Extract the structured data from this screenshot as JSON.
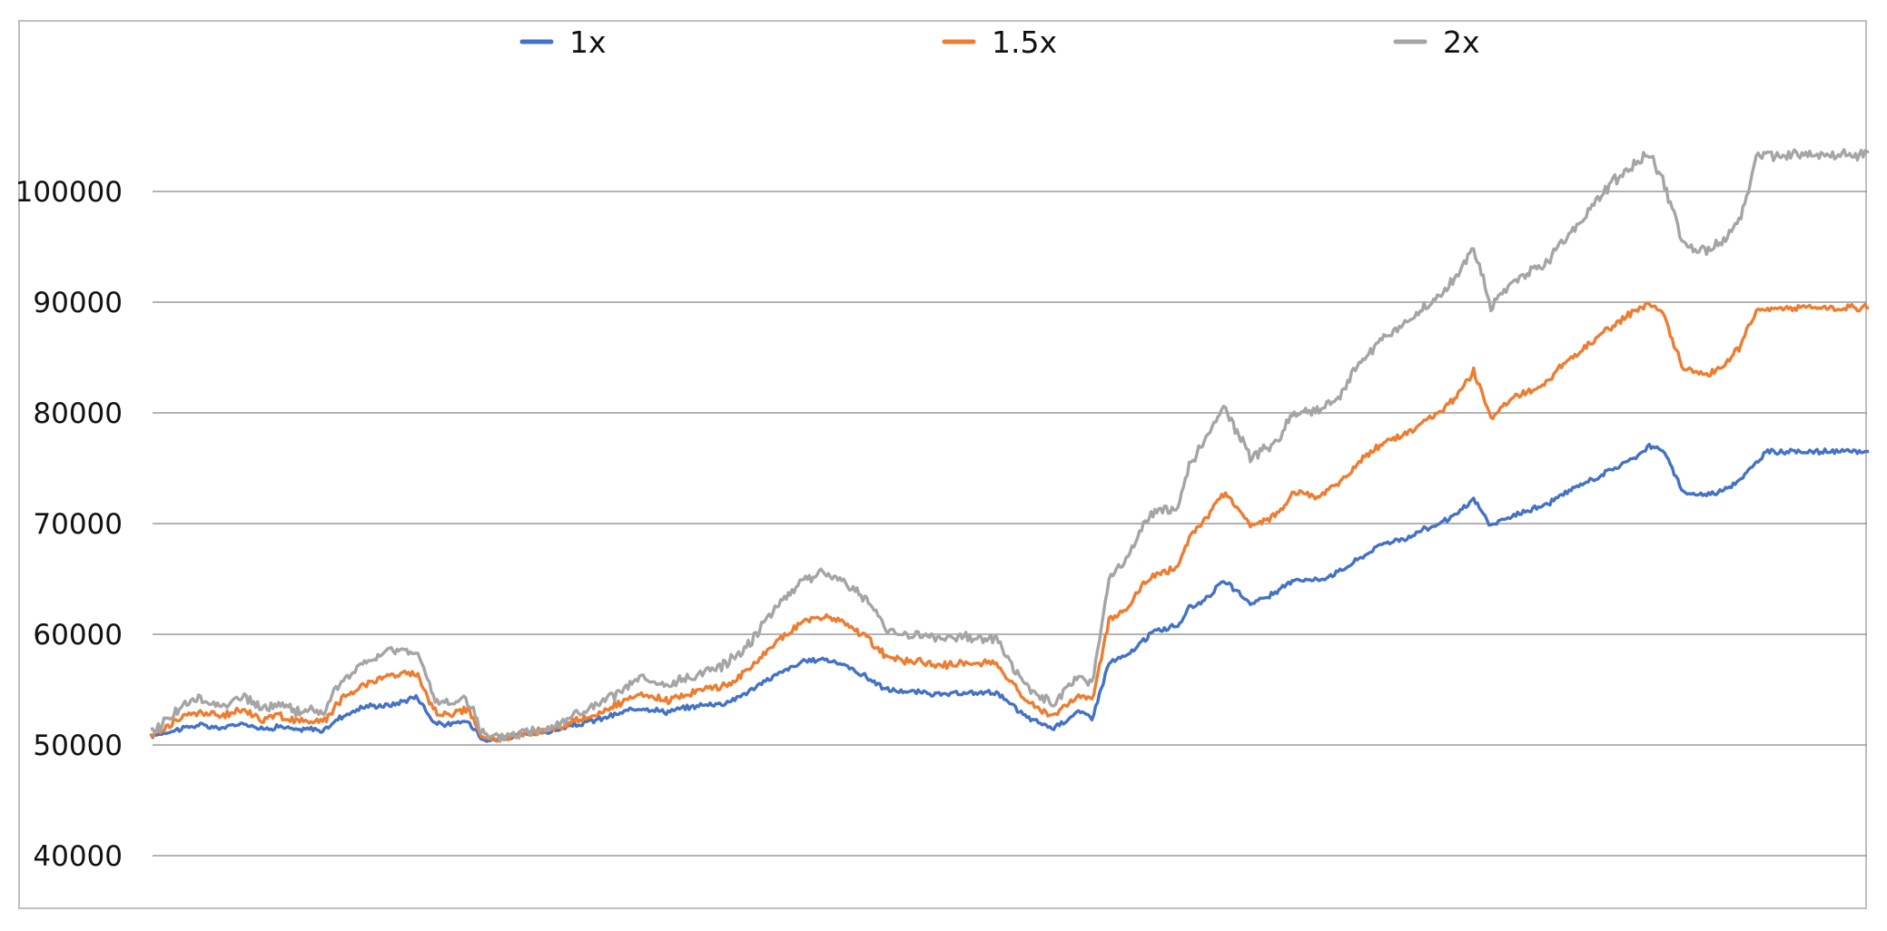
{
  "chart_data": {
    "type": "line",
    "title": "",
    "xlabel": "",
    "ylabel": "",
    "ylim": [
      35000,
      115000
    ],
    "yticks": [
      40000,
      50000,
      60000,
      70000,
      80000,
      90000,
      100000
    ],
    "ytick_labels": [
      "40000",
      "50000",
      "60000",
      "70000",
      "80000",
      "90000",
      "100000"
    ],
    "grid": "horizontal",
    "legend_position": "top",
    "x": [
      0,
      18,
      28,
      40,
      55,
      65,
      75,
      85,
      95,
      100,
      110,
      125,
      140,
      155,
      165,
      175,
      183,
      188,
      192,
      197,
      208,
      220,
      235,
      248,
      258,
      270,
      285,
      300,
      310,
      320,
      335,
      350,
      360,
      370,
      380,
      392,
      404,
      416,
      428,
      440,
      452,
      460,
      468,
      480,
      492,
      500,
      510,
      525,
      540,
      548,
      558,
      568,
      575,
      583,
      590,
      598,
      604,
      612,
      625,
      640,
      655,
      665,
      680,
      692,
      705,
      718,
      730,
      740,
      750,
      760,
      770,
      780,
      790,
      800,
      812,
      822,
      832,
      842,
      852,
      862,
      872,
      880,
      892,
      905,
      915,
      925,
      935,
      940,
      948,
      960,
      970,
      975,
      980,
      990,
      1000,
      1000
    ],
    "series": [
      {
        "name": "1x",
        "color": "#4472c4",
        "values": [
          50800,
          51500,
          51800,
          51500,
          52000,
          51400,
          51700,
          51300,
          51500,
          51200,
          52500,
          53500,
          53600,
          54400,
          52000,
          51800,
          52200,
          51600,
          50800,
          50400,
          50700,
          51000,
          51300,
          51800,
          52200,
          52700,
          53400,
          53000,
          53300,
          53600,
          53800,
          55000,
          56000,
          56800,
          57500,
          57800,
          57200,
          56200,
          55000,
          54800,
          54700,
          54500,
          54600,
          54700,
          54800,
          53700,
          52500,
          51500,
          53000,
          52500,
          57500,
          58000,
          59000,
          60200,
          60500,
          60800,
          62300,
          63000,
          64800,
          62800,
          63700,
          65000,
          64900,
          65700,
          67000,
          68300,
          68600,
          69400,
          70000,
          70800,
          72200,
          69800,
          70500,
          71100,
          71700,
          72600,
          73500,
          74200,
          75000,
          75800,
          77000,
          76700,
          72800,
          72600,
          73000,
          74000,
          75500,
          76500,
          76500,
          76500,
          76500,
          76500,
          76500,
          76500,
          76500,
          76500
        ]
      },
      {
        "name": "1.5x",
        "color": "#ed7d31",
        "values": [
          50800,
          52500,
          53000,
          52600,
          53200,
          52300,
          52700,
          52100,
          52300,
          52000,
          54000,
          55600,
          56300,
          56500,
          53000,
          52800,
          53300,
          52400,
          51000,
          50400,
          50700,
          51100,
          51500,
          52200,
          52700,
          53500,
          54500,
          54000,
          54500,
          55000,
          55400,
          57000,
          58700,
          60000,
          61200,
          61600,
          61000,
          59800,
          58000,
          57600,
          57400,
          57200,
          57300,
          57400,
          57500,
          55800,
          54000,
          52500,
          54600,
          54000,
          61500,
          62300,
          64000,
          65300,
          65600,
          66000,
          68700,
          70000,
          72800,
          69800,
          70700,
          72800,
          72500,
          73700,
          75800,
          77400,
          78000,
          79000,
          80000,
          81500,
          83800,
          79500,
          81000,
          81800,
          82700,
          84300,
          85500,
          86800,
          88000,
          89000,
          90000,
          89000,
          84000,
          83500,
          84000,
          86000,
          89500,
          89500,
          89500,
          89500,
          89500,
          89500,
          89500,
          89500,
          89500,
          89500
        ]
      },
      {
        "name": "2x",
        "color": "#a5a5a5",
        "values": [
          51000,
          53500,
          54100,
          53600,
          54300,
          53200,
          53700,
          53000,
          53200,
          52800,
          55600,
          57400,
          58600,
          58500,
          54000,
          53700,
          54300,
          53200,
          51200,
          50500,
          50800,
          51200,
          51800,
          52800,
          53400,
          54500,
          56000,
          55200,
          55900,
          56500,
          57300,
          59500,
          61800,
          63500,
          65000,
          65500,
          64800,
          63200,
          60500,
          60000,
          59800,
          59600,
          59700,
          59700,
          59700,
          57500,
          55200,
          53600,
          56200,
          55600,
          65000,
          66800,
          69000,
          71000,
          71200,
          71500,
          75200,
          77000,
          80500,
          76000,
          77300,
          80000,
          80200,
          81700,
          84800,
          86800,
          88000,
          89300,
          90500,
          92300,
          95000,
          89500,
          91500,
          92500,
          93500,
          95500,
          97300,
          99300,
          101000,
          102300,
          103500,
          101000,
          95200,
          94700,
          95500,
          97500,
          103300,
          103300,
          103300,
          103300,
          103300,
          103300,
          103300,
          103300,
          103300,
          103300
        ]
      }
    ]
  }
}
